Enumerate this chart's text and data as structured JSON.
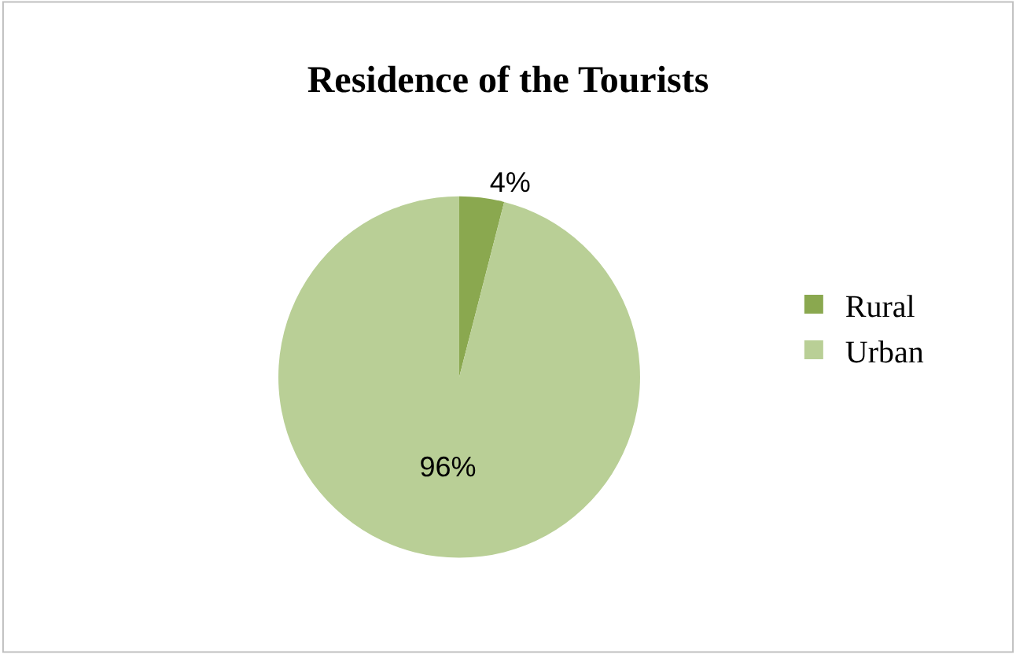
{
  "chart_data": {
    "type": "pie",
    "title": "Residence of the Tourists",
    "categories": [
      "Rural",
      "Urban"
    ],
    "values": [
      4,
      96
    ],
    "value_labels": [
      "4%",
      "96%"
    ],
    "colors": [
      "#8aa84f",
      "#b9cf96"
    ],
    "legend": "right"
  }
}
